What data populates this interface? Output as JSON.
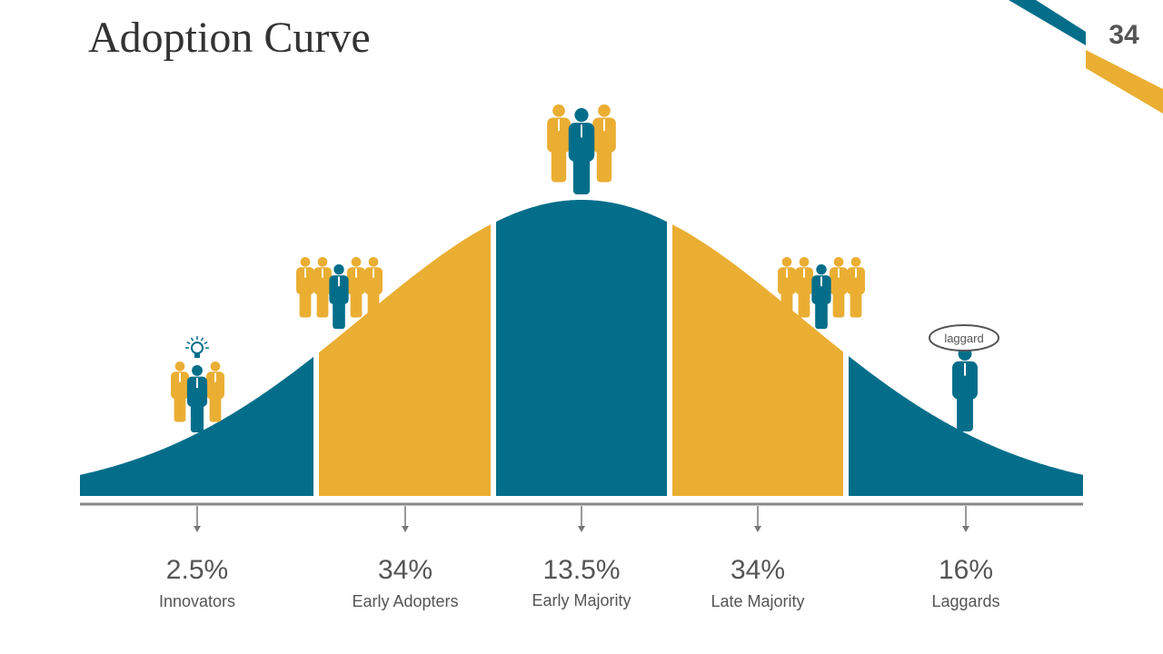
{
  "title": "Adoption Curve",
  "page_number": "34",
  "segments": [
    {
      "percent": "2.5%",
      "label": "Innovators"
    },
    {
      "percent": "34%",
      "label": "Early Adopters"
    },
    {
      "percent": "13.5%",
      "label": "Early Majority"
    },
    {
      "percent": "34%",
      "label": "Late Majority"
    },
    {
      "percent": "16%",
      "label": "Laggards"
    }
  ],
  "callout": "laggard"
}
